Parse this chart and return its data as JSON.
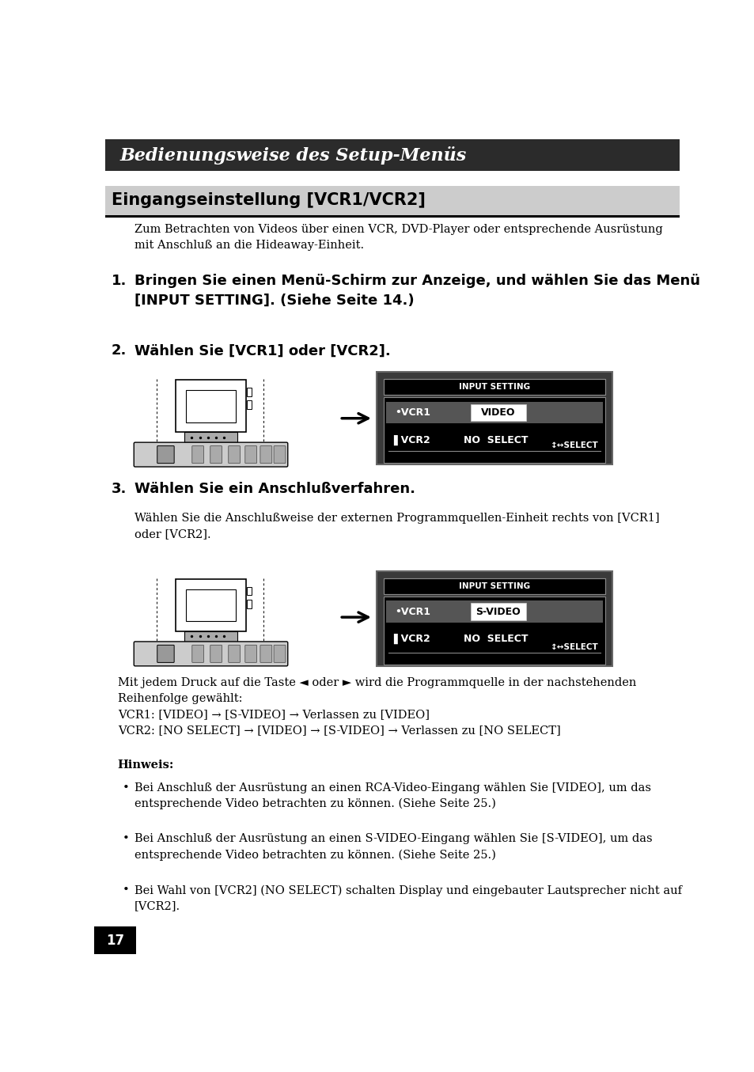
{
  "bg_color": "#ffffff",
  "header_bg": "#2b2b2b",
  "header_text": "Bedienungsweise des Setup-Menüs",
  "header_text_color": "#ffffff",
  "section_title": "Eingangseinstellung [VCR1/VCR2]",
  "section_title_color": "#000000",
  "section_bg": "#cccccc",
  "page_number": "17",
  "intro_text": "Zum Betrachten von Videos über einen VCR, DVD-Player oder entsprechende Ausrüstung\nmit Anschluß an die Hideaway-Einheit.",
  "step1_number": "1.",
  "step1_text": "Bringen Sie einen Menü-Schirm zur Anzeige, und wählen Sie das Menü\n[INPUT SETTING]. (Siehe Seite 14.)",
  "step2_number": "2.",
  "step2_text": "Wählen Sie [VCR1] oder [VCR2].",
  "step3_number": "3.",
  "step3_text": "Wählen Sie ein Anschlußverfahren.",
  "step3_subtext": "Wählen Sie die Anschlußweise der externen Programmquellen-Einheit rechts von [VCR1]\noder [VCR2].",
  "note_header": "Hinweis:",
  "note_bullets": [
    "Bei Anschluß der Ausrüstung an einen RCA-Video-Eingang wählen Sie [VIDEO], um das\nentsprechende Video betrachten zu können. (Siehe Seite 25.)",
    "Bei Anschluß der Ausrüstung an einen S-VIDEO-Eingang wählen Sie [S-VIDEO], um das\nentsprechende Video betrachten zu können. (Siehe Seite 25.)",
    "Bei Wahl von [VCR2] (NO SELECT) schalten Display und eingebauter Lautsprecher nicht auf\n[VCR2]."
  ],
  "seq_text": "Mit jedem Druck auf die Taste ◄ oder ► wird die Programmquelle in der nachstehenden\nReihenfolge gewählt:\nVCR1: [VIDEO] → [S-VIDEO] → Verlassen zu [VIDEO]\nVCR2: [NO SELECT] → [VIDEO] → [S-VIDEO] → Verlassen zu [NO SELECT]"
}
